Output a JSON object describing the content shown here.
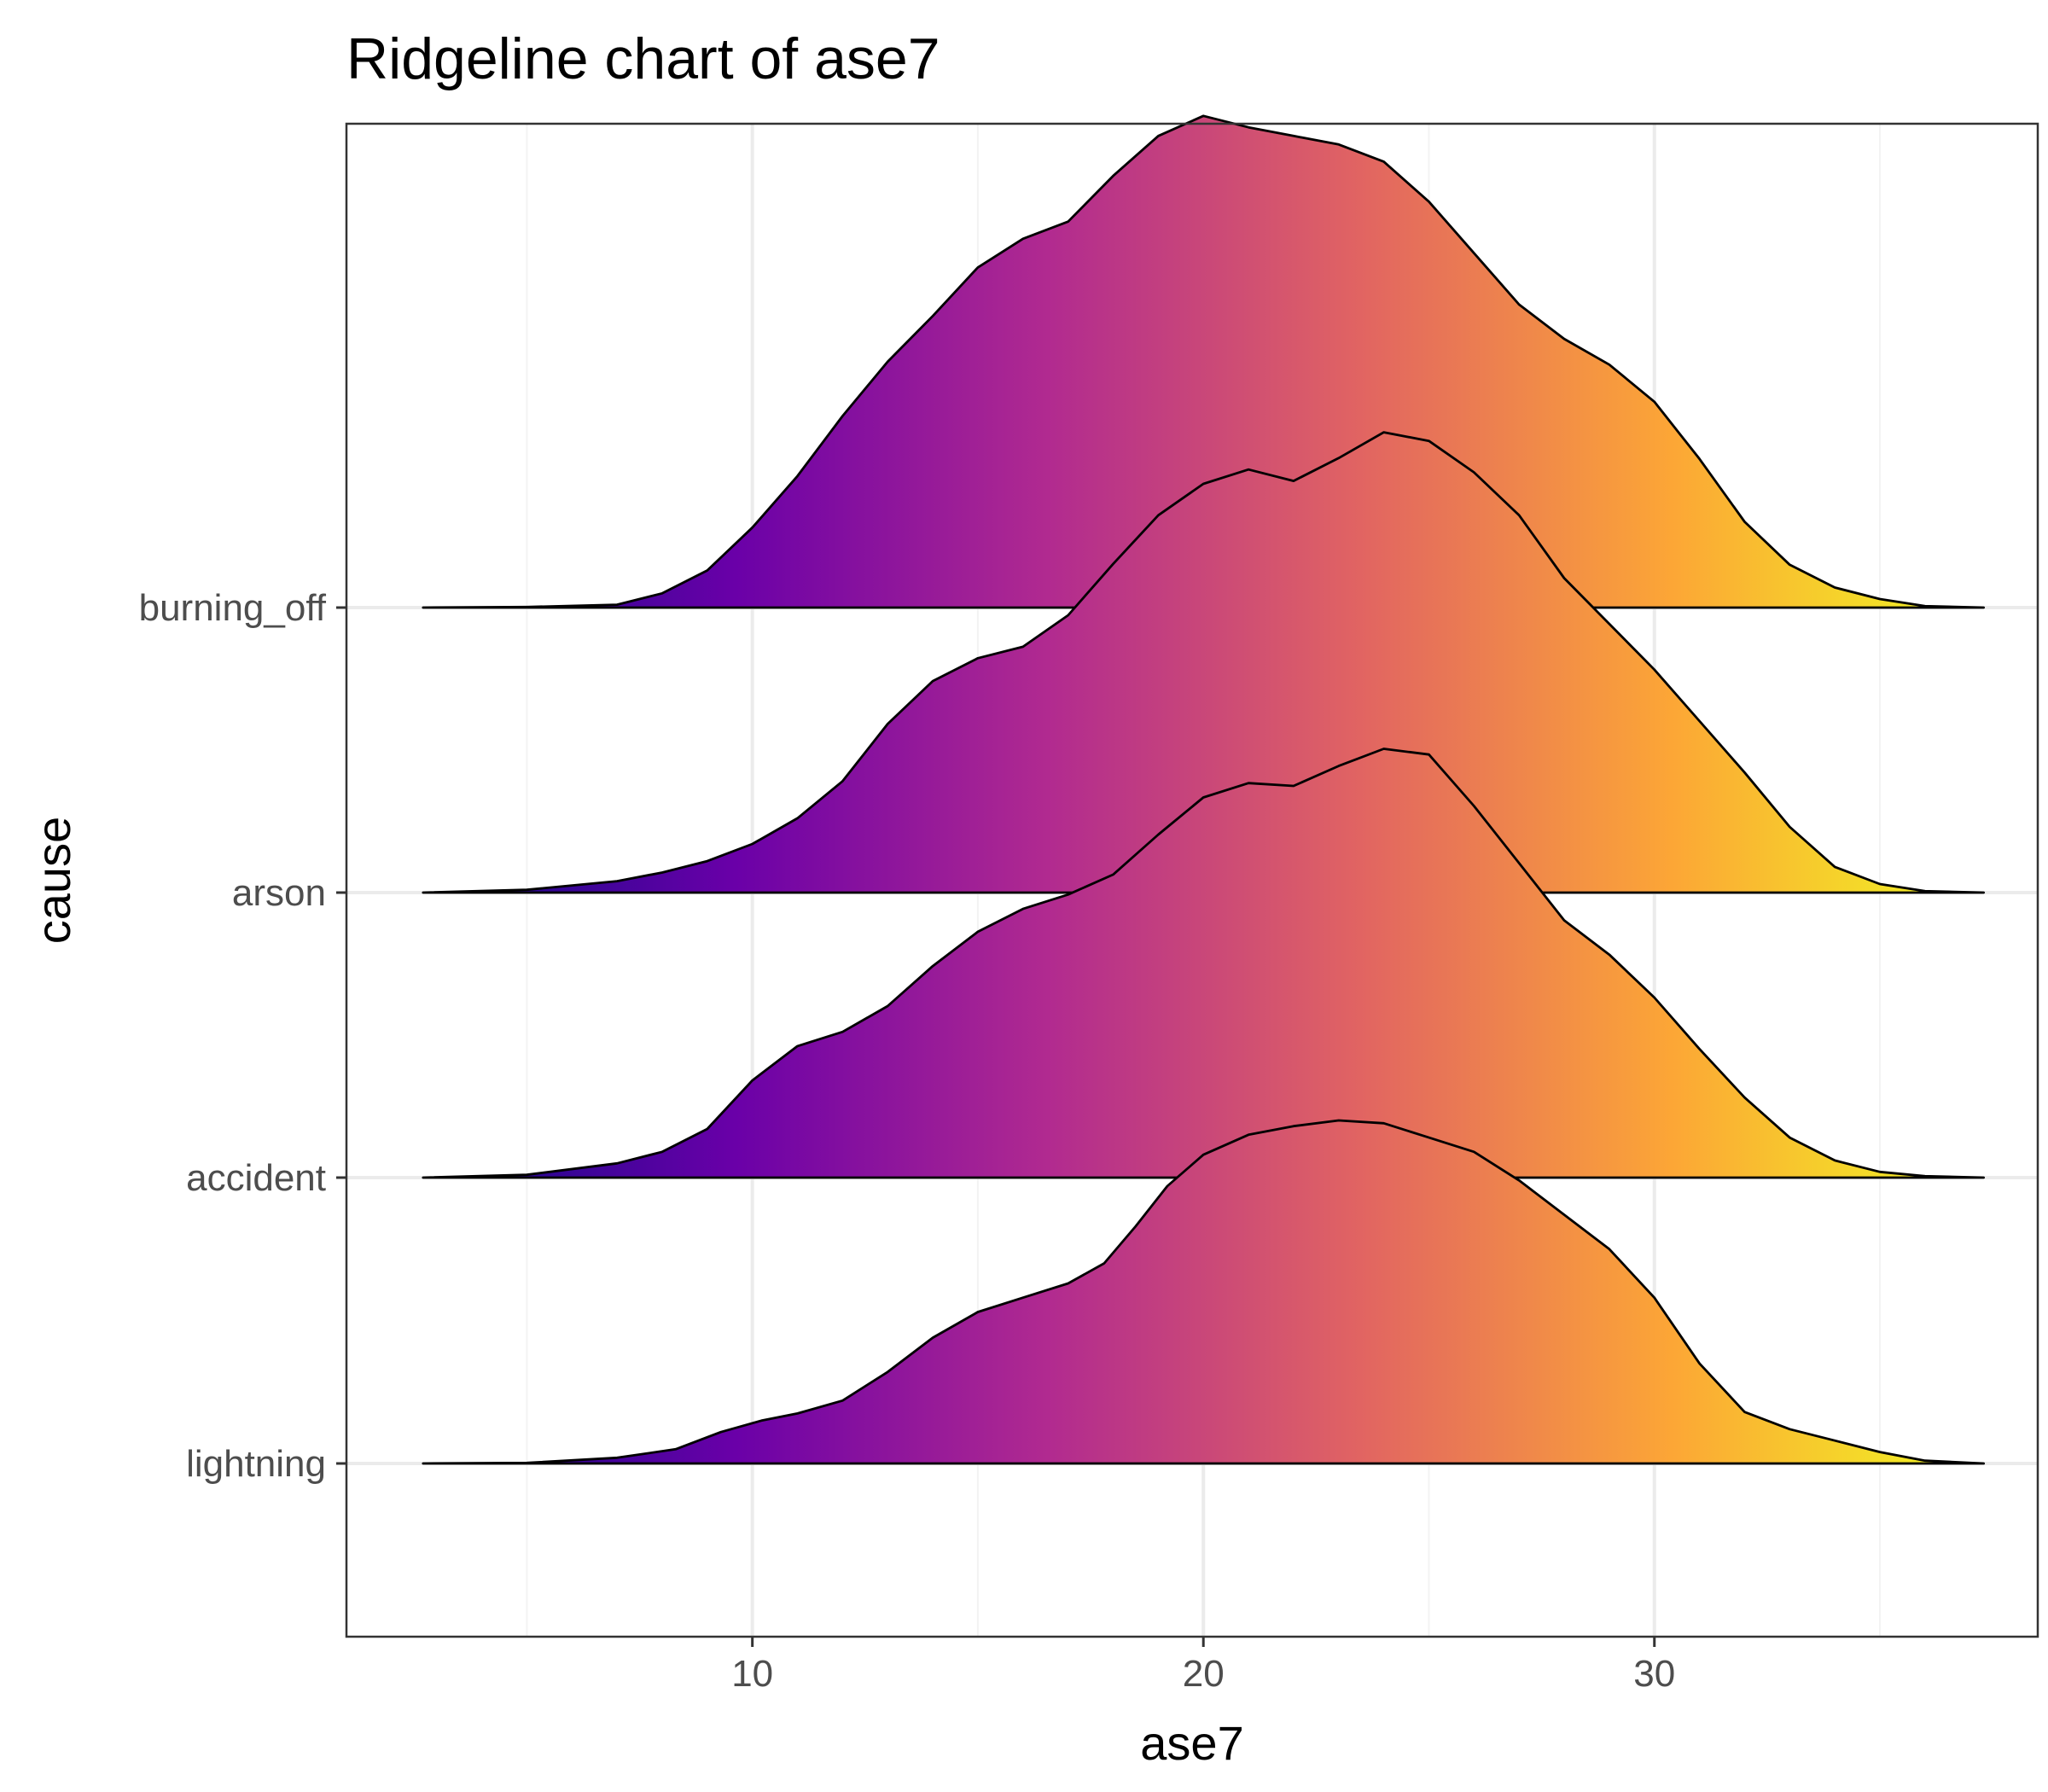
{
  "chart_data": {
    "type": "ridgeline",
    "title": "Ridgeline chart of ase7",
    "xlabel": "ase7",
    "ylabel": "cause",
    "xlim": [
      1.0,
      38.5
    ],
    "x_ticks": [
      10,
      20,
      30
    ],
    "x_minor_ticks": [
      5,
      15,
      25,
      35
    ],
    "density_range": [
      2.7,
      37.3
    ],
    "grid": true,
    "legend": "none",
    "fill": "plasma gradient along x",
    "color_scale": [
      "#0d0887",
      "#6a00a8",
      "#b12a90",
      "#e16462",
      "#fca636",
      "#f0f921"
    ],
    "series": [
      {
        "name": "lightning",
        "x": [
          2.7,
          5,
          7,
          8.3,
          9.3,
          10.2,
          11,
          12,
          13,
          14,
          15,
          16,
          17,
          17.8,
          18.5,
          19.2,
          20,
          21,
          22,
          23,
          24,
          25,
          26,
          27,
          28,
          29,
          30,
          31,
          32,
          33,
          34,
          35,
          36,
          37.3
        ],
        "density": [
          0,
          0.002,
          0.02,
          0.05,
          0.11,
          0.15,
          0.175,
          0.22,
          0.32,
          0.44,
          0.53,
          0.58,
          0.63,
          0.7,
          0.83,
          0.97,
          1.08,
          1.15,
          1.18,
          1.2,
          1.19,
          1.14,
          1.09,
          0.99,
          0.87,
          0.75,
          0.58,
          0.35,
          0.18,
          0.12,
          0.08,
          0.04,
          0.01,
          0
        ]
      },
      {
        "name": "accident",
        "x": [
          2.7,
          5,
          7,
          8,
          9,
          10,
          11,
          12,
          13,
          14,
          15,
          16,
          17,
          18,
          19,
          20,
          21,
          22,
          23,
          24,
          25,
          26,
          27,
          28,
          29,
          30,
          31,
          32,
          33,
          34,
          35,
          36,
          37.3
        ],
        "density": [
          0,
          0.01,
          0.05,
          0.09,
          0.17,
          0.34,
          0.46,
          0.51,
          0.6,
          0.74,
          0.86,
          0.94,
          0.99,
          1.06,
          1.2,
          1.33,
          1.38,
          1.37,
          1.44,
          1.5,
          1.48,
          1.3,
          1.1,
          0.9,
          0.78,
          0.63,
          0.45,
          0.28,
          0.14,
          0.06,
          0.02,
          0.005,
          0
        ]
      },
      {
        "name": "arson",
        "x": [
          2.7,
          5,
          7,
          8,
          9,
          10,
          11,
          12,
          13,
          14,
          15,
          16,
          17,
          18,
          19,
          20,
          21,
          22,
          23,
          24,
          25,
          26,
          27,
          28,
          29,
          30,
          31,
          32,
          33,
          34,
          35,
          36,
          37.3
        ],
        "density": [
          0,
          0.01,
          0.04,
          0.07,
          0.11,
          0.17,
          0.26,
          0.39,
          0.59,
          0.74,
          0.82,
          0.86,
          0.97,
          1.15,
          1.32,
          1.43,
          1.48,
          1.44,
          1.52,
          1.61,
          1.58,
          1.47,
          1.32,
          1.1,
          0.94,
          0.78,
          0.6,
          0.42,
          0.23,
          0.09,
          0.03,
          0.005,
          0
        ]
      },
      {
        "name": "burning_off",
        "x": [
          2.7,
          5,
          7,
          8,
          9,
          10,
          11,
          12,
          13,
          14,
          15,
          16,
          17,
          18,
          19,
          20,
          21,
          22,
          23,
          24,
          25,
          26,
          27,
          28,
          29,
          30,
          31,
          32,
          33,
          34,
          35,
          36,
          37.3
        ],
        "density": [
          0,
          0.002,
          0.01,
          0.05,
          0.13,
          0.28,
          0.46,
          0.67,
          0.86,
          1.02,
          1.19,
          1.29,
          1.35,
          1.51,
          1.65,
          1.72,
          1.68,
          1.65,
          1.62,
          1.56,
          1.42,
          1.24,
          1.06,
          0.94,
          0.85,
          0.72,
          0.52,
          0.3,
          0.15,
          0.07,
          0.03,
          0.005,
          0
        ]
      }
    ]
  }
}
